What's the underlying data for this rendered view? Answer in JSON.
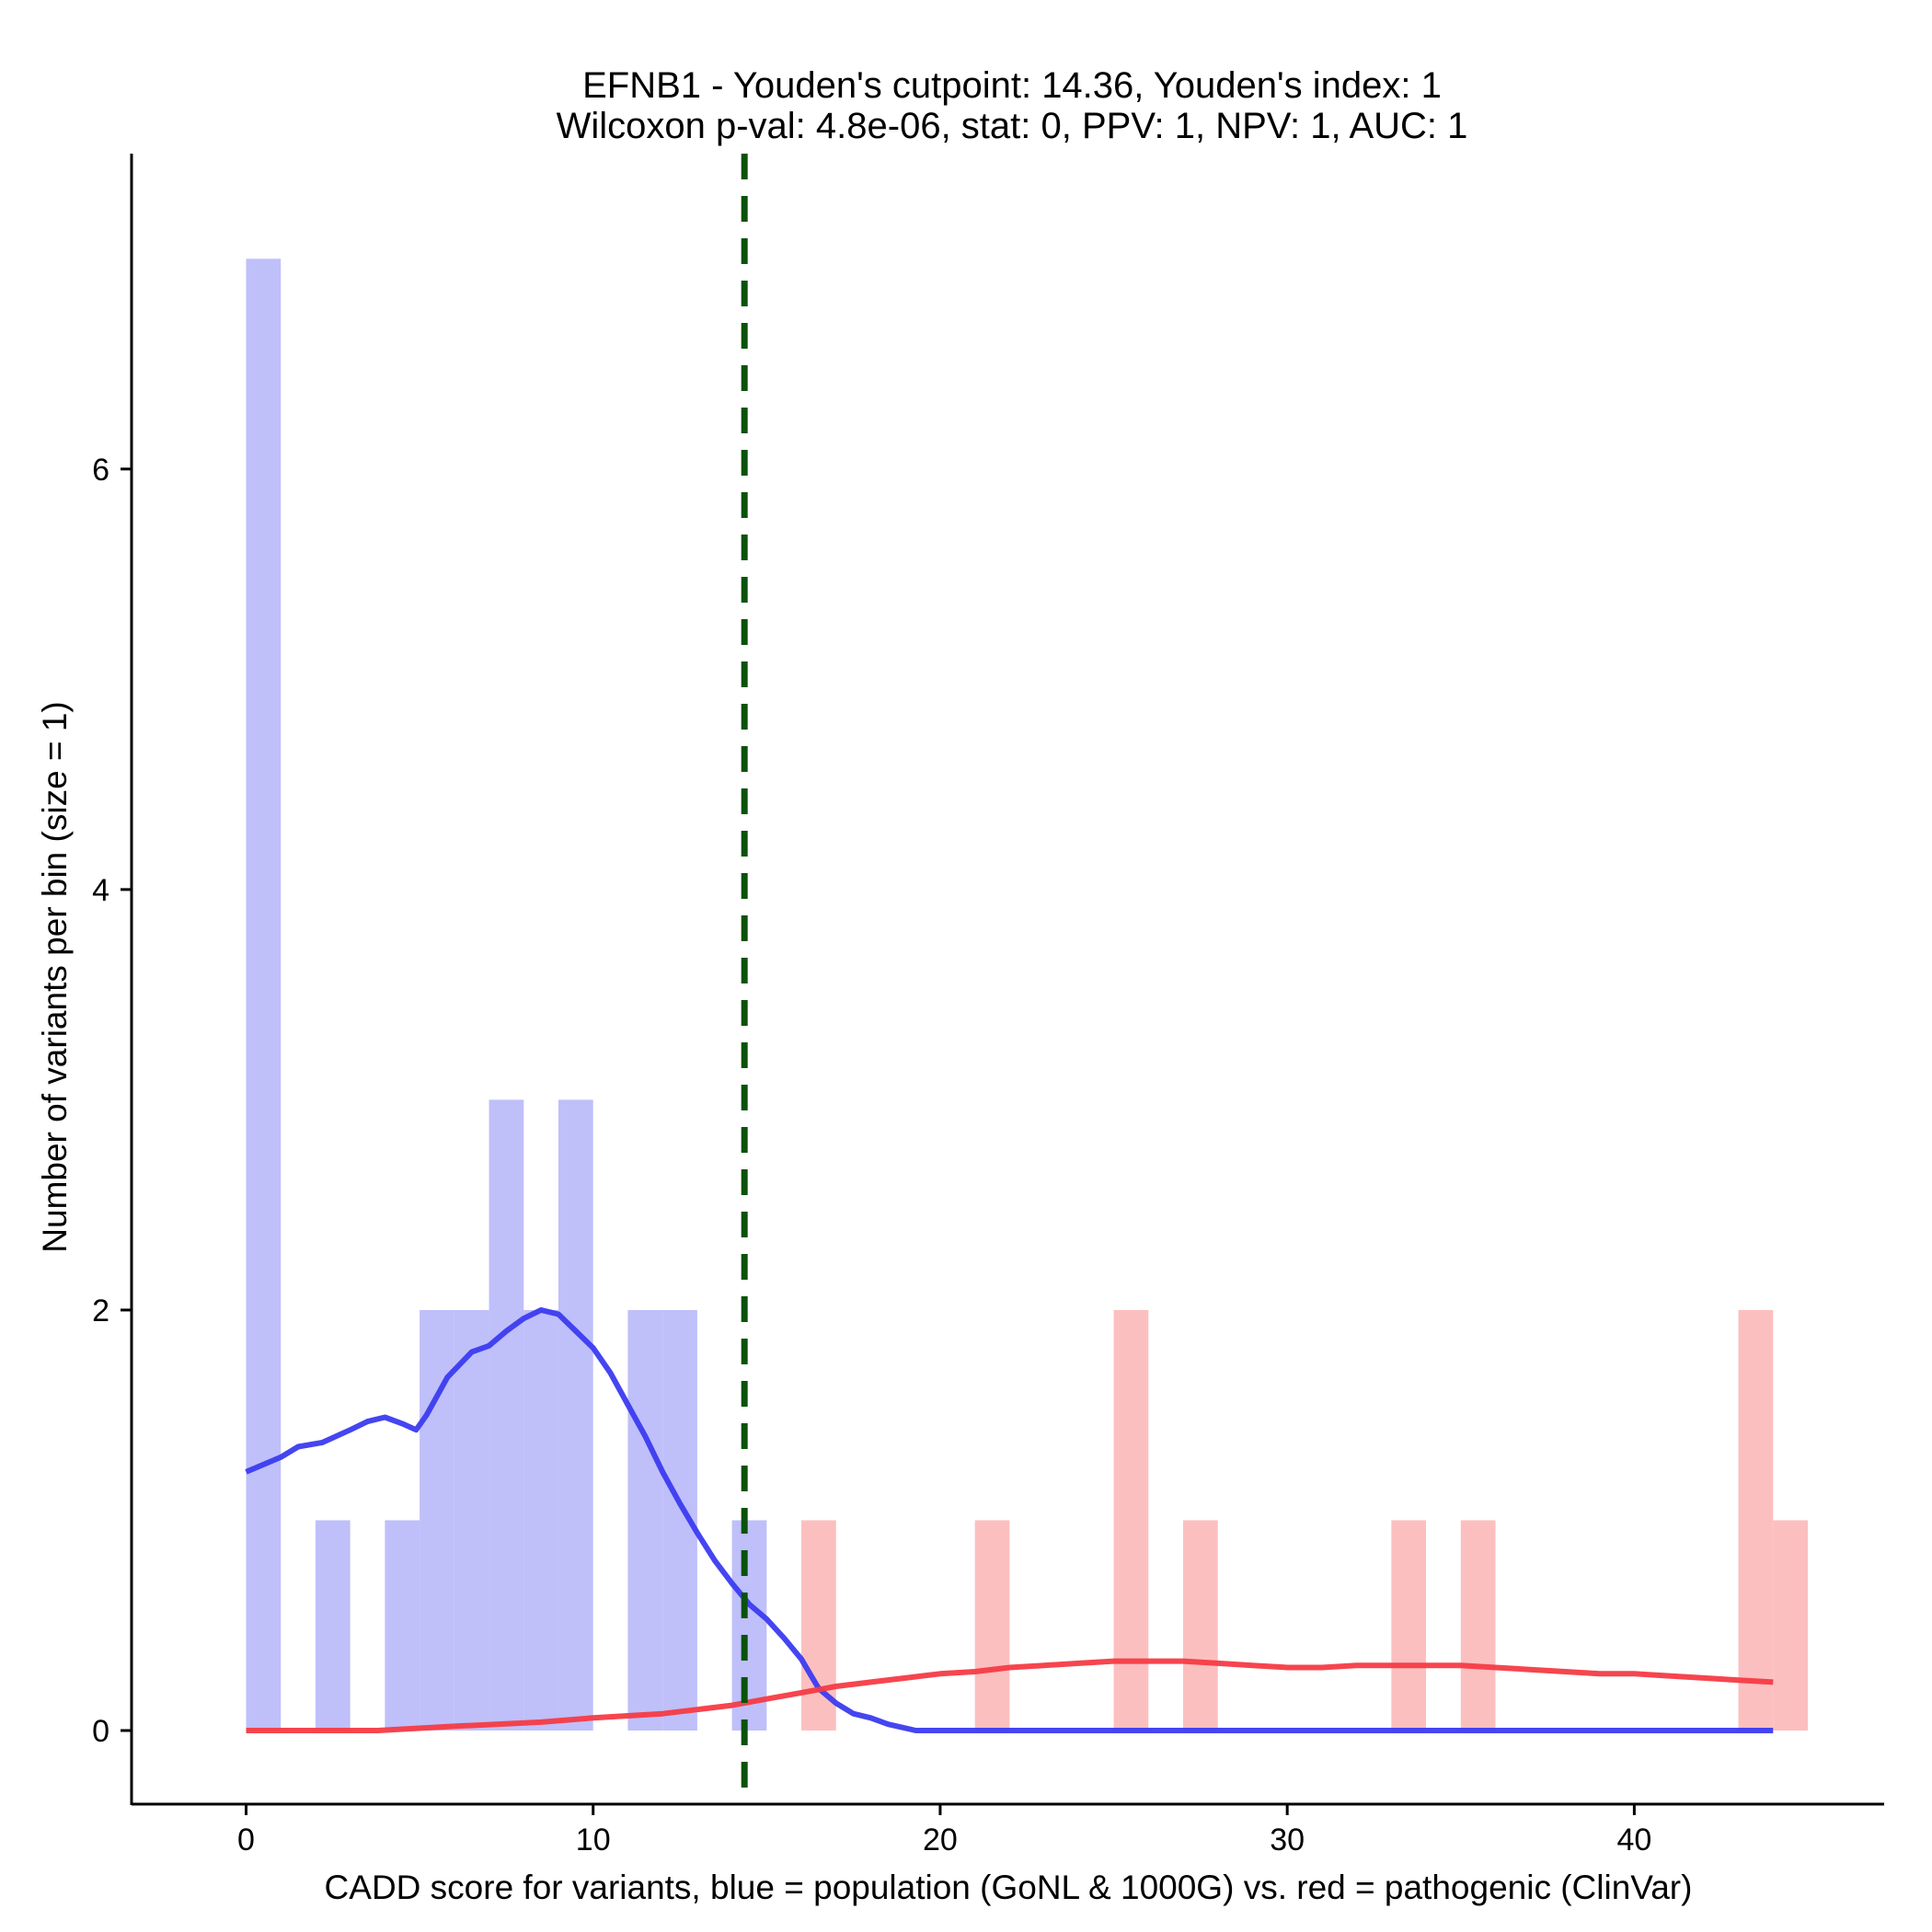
{
  "chart_data": {
    "type": "bar",
    "title_line1": "EFNB1 - Youden's cutpoint: 14.36, Youden's index: 1",
    "title_line2": "Wilcoxon p-val: 4.8e-06, stat: 0, PPV: 1, NPV: 1, AUC: 1",
    "xlabel": "CADD score for variants, blue = population (GoNL & 1000G) vs. red = pathogenic (ClinVar)",
    "ylabel": "Number of variants per bin (size = 1)",
    "xlim": [
      -3.3,
      47.2
    ],
    "ylim": [
      -0.35,
      7.5
    ],
    "x_ticks": [
      0,
      10,
      20,
      30,
      40
    ],
    "y_ticks": [
      0,
      2,
      4,
      6
    ],
    "bin_width": 1,
    "cutpoint": 14.36,
    "colors": {
      "population_bar": "#bfbffa",
      "pathogenic_bar": "#fcbfbf",
      "population_line": "#3b3bf0",
      "pathogenic_line": "#f53b45",
      "cutpoint_line": "#0b520b"
    },
    "series": [
      {
        "name": "population (GoNL & 1000G)",
        "bins": [
          {
            "start": 0,
            "count": 7
          },
          {
            "start": 2,
            "count": 1
          },
          {
            "start": 4,
            "count": 1
          },
          {
            "start": 5,
            "count": 2
          },
          {
            "start": 6,
            "count": 2
          },
          {
            "start": 7,
            "count": 3
          },
          {
            "start": 8,
            "count": 2
          },
          {
            "start": 9,
            "count": 3
          },
          {
            "start": 11,
            "count": 2
          },
          {
            "start": 12,
            "count": 2
          },
          {
            "start": 14,
            "count": 1
          }
        ],
        "density_curve": [
          [
            0,
            1.23
          ],
          [
            1,
            1.3
          ],
          [
            1.5,
            1.35
          ],
          [
            2.2,
            1.37
          ],
          [
            3,
            1.43
          ],
          [
            3.5,
            1.47
          ],
          [
            4,
            1.49
          ],
          [
            4.5,
            1.46
          ],
          [
            4.9,
            1.43
          ],
          [
            5.2,
            1.5
          ],
          [
            5.8,
            1.68
          ],
          [
            6.5,
            1.8
          ],
          [
            7,
            1.83
          ],
          [
            7.5,
            1.9
          ],
          [
            8,
            1.96
          ],
          [
            8.5,
            2.0
          ],
          [
            9,
            1.98
          ],
          [
            9.5,
            1.9
          ],
          [
            10,
            1.82
          ],
          [
            10.5,
            1.7
          ],
          [
            11,
            1.55
          ],
          [
            11.5,
            1.4
          ],
          [
            12,
            1.23
          ],
          [
            12.5,
            1.08
          ],
          [
            13,
            0.94
          ],
          [
            13.5,
            0.81
          ],
          [
            14,
            0.7
          ],
          [
            14.5,
            0.6
          ],
          [
            15,
            0.53
          ],
          [
            15.5,
            0.44
          ],
          [
            16,
            0.34
          ],
          [
            16.5,
            0.2
          ],
          [
            17,
            0.13
          ],
          [
            17.5,
            0.08
          ],
          [
            18,
            0.06
          ],
          [
            18.5,
            0.03
          ],
          [
            19.3,
            0.0
          ],
          [
            25,
            0.0
          ],
          [
            30,
            0.0
          ],
          [
            35,
            0.0
          ],
          [
            40,
            0.0
          ],
          [
            44,
            0.0
          ]
        ]
      },
      {
        "name": "pathogenic (ClinVar)",
        "bins": [
          {
            "start": 16,
            "count": 1
          },
          {
            "start": 21,
            "count": 1
          },
          {
            "start": 25,
            "count": 2
          },
          {
            "start": 27,
            "count": 1
          },
          {
            "start": 33,
            "count": 1
          },
          {
            "start": 35,
            "count": 1
          },
          {
            "start": 43,
            "count": 2
          },
          {
            "start": 44,
            "count": 1
          }
        ],
        "density_curve": [
          [
            0,
            0.0
          ],
          [
            2,
            0.0
          ],
          [
            3.8,
            0.0
          ],
          [
            6,
            0.02
          ],
          [
            8.5,
            0.04
          ],
          [
            10,
            0.06
          ],
          [
            12,
            0.08
          ],
          [
            13,
            0.1
          ],
          [
            14,
            0.12
          ],
          [
            15,
            0.15
          ],
          [
            16,
            0.18
          ],
          [
            17,
            0.21
          ],
          [
            18,
            0.23
          ],
          [
            19,
            0.25
          ],
          [
            20,
            0.27
          ],
          [
            21,
            0.28
          ],
          [
            22,
            0.3
          ],
          [
            23,
            0.31
          ],
          [
            24,
            0.32
          ],
          [
            25,
            0.33
          ],
          [
            26,
            0.33
          ],
          [
            27,
            0.33
          ],
          [
            28,
            0.32
          ],
          [
            29,
            0.31
          ],
          [
            30,
            0.3
          ],
          [
            31,
            0.3
          ],
          [
            32,
            0.31
          ],
          [
            33,
            0.31
          ],
          [
            34,
            0.31
          ],
          [
            35,
            0.31
          ],
          [
            36,
            0.3
          ],
          [
            37,
            0.29
          ],
          [
            38,
            0.28
          ],
          [
            39,
            0.27
          ],
          [
            40,
            0.27
          ],
          [
            41,
            0.26
          ],
          [
            42,
            0.25
          ],
          [
            43,
            0.24
          ],
          [
            44,
            0.23
          ]
        ]
      }
    ]
  }
}
